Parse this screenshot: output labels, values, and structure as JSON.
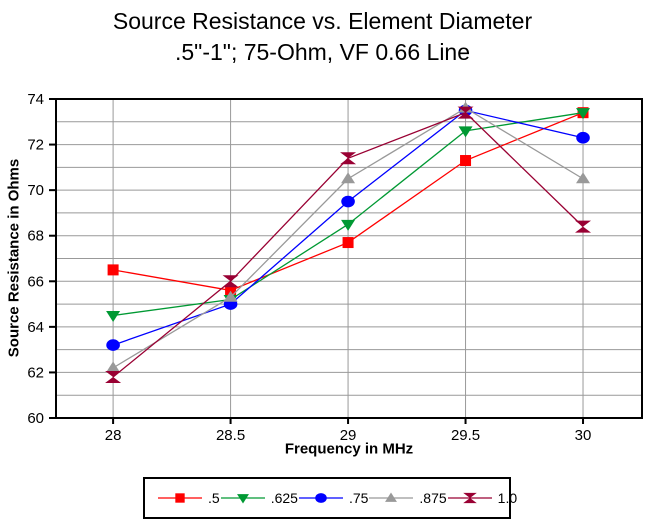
{
  "chart": {
    "title_line1": "Source Resistance vs. Element Diameter",
    "title_line2": ".5\"-1\"; 75-Ohm, VF 0.66 Line"
  },
  "chart_data": {
    "type": "line",
    "title": "Source Resistance vs. Element Diameter .5\"-1\"; 75-Ohm, VF 0.66 Line",
    "xlabel": "Frequency in MHz",
    "ylabel": "Source Resistance in Ohms",
    "x": [
      28,
      28.5,
      29,
      29.5,
      30
    ],
    "x_tick_labels": [
      "28",
      "28.5",
      "29",
      "29.5",
      "30"
    ],
    "y_tick_values": [
      60,
      62,
      64,
      66,
      68,
      70,
      72,
      74
    ],
    "y_tick_labels": [
      "60",
      "62",
      "64",
      "66",
      "68",
      "70",
      "72",
      "74"
    ],
    "xlim": [
      27.757,
      30.251
    ],
    "ylim": [
      60,
      74
    ],
    "grid": true,
    "minor_y_grid_step": 1,
    "legend_position": "bottom",
    "colors": {
      "grid": "#999999",
      "axis": "#000000",
      "background": "#ffffff"
    },
    "series": [
      {
        "name": ".5",
        "marker": "square",
        "color": "#ff0000",
        "values": [
          66.5,
          65.6,
          67.7,
          71.3,
          73.4
        ]
      },
      {
        "name": ".625",
        "marker": "triangle-down",
        "color": "#009933",
        "values": [
          64.5,
          65.2,
          68.5,
          72.6,
          73.4
        ]
      },
      {
        "name": ".75",
        "marker": "circle",
        "color": "#0000ff",
        "values": [
          63.2,
          65.0,
          69.5,
          73.5,
          72.3
        ]
      },
      {
        "name": ".875",
        "marker": "triangle-up",
        "color": "#999999",
        "values": [
          62.2,
          65.3,
          70.5,
          73.6,
          70.5
        ]
      },
      {
        "name": "1.0",
        "marker": "bowtie",
        "color": "#990033",
        "values": [
          61.8,
          66.0,
          71.4,
          73.4,
          68.4
        ]
      }
    ]
  }
}
